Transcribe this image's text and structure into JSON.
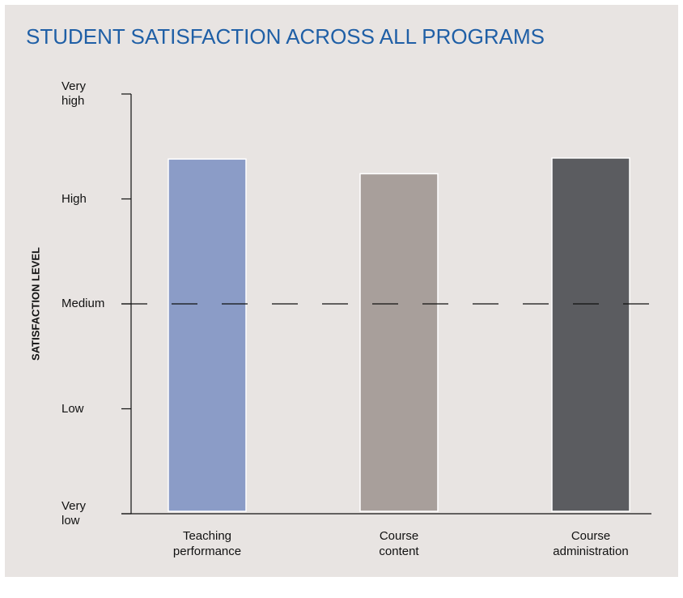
{
  "chart_data": {
    "type": "bar",
    "title": "STUDENT SATISFACTION ACROSS ALL PROGRAMS",
    "y_label": "SATISFACTION LEVEL",
    "categories": [
      "Teaching performance",
      "Course content",
      "Course administration"
    ],
    "values": [
      4.38,
      4.24,
      4.39
    ],
    "colors": [
      "#8b9cc7",
      "#a89f9b",
      "#5b5c60"
    ],
    "ylim": [
      1,
      5
    ],
    "yticks": [
      {
        "value": 1,
        "label": "Very low"
      },
      {
        "value": 2,
        "label": "Low"
      },
      {
        "value": 3,
        "label": "Medium"
      },
      {
        "value": 4,
        "label": "High"
      },
      {
        "value": 5,
        "label": "Very high"
      }
    ],
    "reference_line": 3,
    "grid": false
  }
}
